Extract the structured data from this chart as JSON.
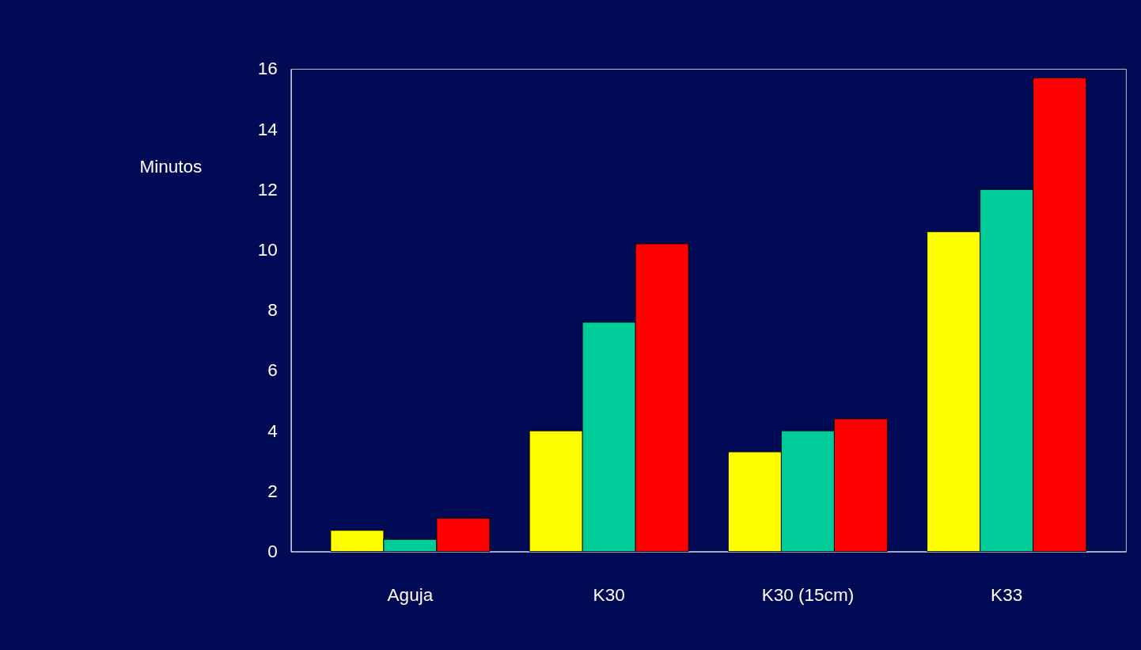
{
  "chart_data": {
    "type": "bar",
    "ylabel": "Minutos",
    "categories": [
      "Aguja",
      "K30",
      "K30 (15cm)",
      "K33"
    ],
    "series": [
      {
        "color": "#ffff00",
        "values": [
          0.7,
          4.0,
          3.3,
          10.6
        ]
      },
      {
        "color": "#00cc99",
        "values": [
          0.4,
          7.6,
          4.0,
          12.0
        ]
      },
      {
        "color": "#ff0000",
        "values": [
          1.1,
          10.2,
          4.4,
          15.7
        ]
      }
    ],
    "ylim": [
      0,
      16
    ],
    "yticks": [
      0,
      2,
      4,
      6,
      8,
      10,
      12,
      14,
      16
    ],
    "grid": false,
    "legend": false
  }
}
